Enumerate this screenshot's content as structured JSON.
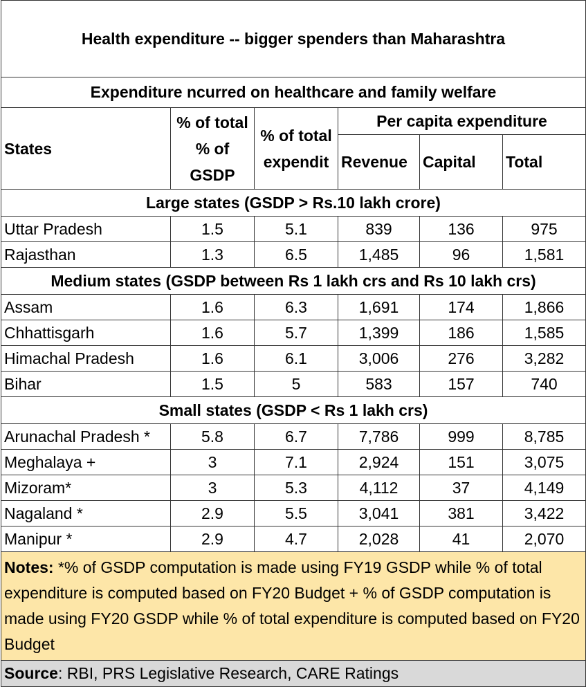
{
  "title": "Health expenditure -- bigger spenders than Maharashtra",
  "subtitle": "Expenditure  ncurred on healthcare and family welfare",
  "headers": {
    "states": "States",
    "pct_gsdp": "% of total % of GSDP",
    "pct_expend": "% of total expendit",
    "per_capita": "Per capita expenditure",
    "revenue": "Revenue",
    "capital": "Capital",
    "total": "Total"
  },
  "chart_data": {
    "type": "table",
    "title": "Health expenditure -- bigger spenders than Maharashtra",
    "subtitle": "Expenditure  ncurred on healthcare and family welfare",
    "columns": [
      "States",
      "% of total % of GSDP",
      "% of total expendit",
      "Revenue",
      "Capital",
      "Total"
    ],
    "sections": [
      {
        "label": "Large states (GSDP > Rs.10 lakh crore)",
        "rows": [
          {
            "state": "Uttar Pradesh",
            "pct_gsdp": "1.5",
            "pct_expend": "5.1",
            "revenue": "839",
            "capital": "136",
            "total": "975"
          },
          {
            "state": "Rajasthan",
            "pct_gsdp": "1.3",
            "pct_expend": "6.5",
            "revenue": "1,485",
            "capital": "96",
            "total": "1,581"
          }
        ]
      },
      {
        "label": "Medium states (GSDP between Rs 1 lakh crs and Rs 10 lakh crs)",
        "rows": [
          {
            "state": "Assam",
            "pct_gsdp": "1.6",
            "pct_expend": "6.3",
            "revenue": "1,691",
            "capital": "174",
            "total": "1,866"
          },
          {
            "state": "Chhattisgarh",
            "pct_gsdp": "1.6",
            "pct_expend": "5.7",
            "revenue": "1,399",
            "capital": "186",
            "total": "1,585"
          },
          {
            "state": "Himachal Pradesh",
            "pct_gsdp": "1.6",
            "pct_expend": "6.1",
            "revenue": "3,006",
            "capital": "276",
            "total": "3,282"
          },
          {
            "state": "Bihar",
            "pct_gsdp": "1.5",
            "pct_expend": "5",
            "revenue": "583",
            "capital": "157",
            "total": "740"
          }
        ]
      },
      {
        "label": "Small states (GSDP < Rs 1 lakh crs)",
        "rows": [
          {
            "state": "Arunachal Pradesh *",
            "pct_gsdp": "5.8",
            "pct_expend": "6.7",
            "revenue": "7,786",
            "capital": "999",
            "total": "8,785"
          },
          {
            "state": "Meghalaya +",
            "pct_gsdp": "3",
            "pct_expend": "7.1",
            "revenue": "2,924",
            "capital": "151",
            "total": "3,075"
          },
          {
            "state": "Mizoram*",
            "pct_gsdp": "3",
            "pct_expend": "5.3",
            "revenue": "4,112",
            "capital": "37",
            "total": "4,149"
          },
          {
            "state": "Nagaland *",
            "pct_gsdp": "2.9",
            "pct_expend": "5.5",
            "revenue": "3,041",
            "capital": "381",
            "total": "3,422"
          },
          {
            "state": "Manipur *",
            "pct_gsdp": "2.9",
            "pct_expend": "4.7",
            "revenue": "2,028",
            "capital": "41",
            "total": "2,070"
          }
        ]
      }
    ]
  },
  "notes": {
    "label": "Notes:",
    "text": " *% of GSDP computation is made using FY19 GSDP while % of total expenditure is computed based on FY20 Budget + % of GSDP computation is made using FY20 GSDP while % of total expenditure is computed based on FY20 Budget"
  },
  "source": {
    "label": "Source",
    "text": ": RBI, PRS Legislative Research, CARE Ratings"
  },
  "colors": {
    "notes_bg": "#fde6a8",
    "source_bg": "#d9d9d9",
    "border": "#333333"
  }
}
